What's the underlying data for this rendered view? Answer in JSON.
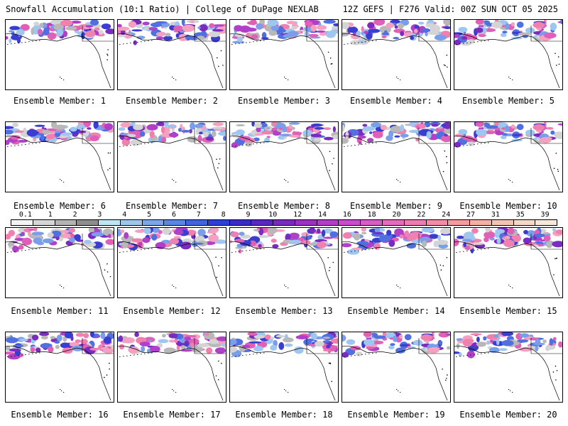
{
  "header": {
    "title_left": "Snowfall Accumulation (10:1 Ratio) | College of DuPage NEXLAB",
    "title_right": "12Z GEFS | F276 Valid: 00Z SUN OCT 05 2025"
  },
  "members": [
    {
      "label": "Ensemble Member: 1"
    },
    {
      "label": "Ensemble Member: 2"
    },
    {
      "label": "Ensemble Member: 3"
    },
    {
      "label": "Ensemble Member: 4"
    },
    {
      "label": "Ensemble Member: 5"
    },
    {
      "label": "Ensemble Member: 6"
    },
    {
      "label": "Ensemble Member: 7"
    },
    {
      "label": "Ensemble Member: 8"
    },
    {
      "label": "Ensemble Member: 9"
    },
    {
      "label": "Ensemble Member: 10"
    },
    {
      "label": "Ensemble Member: 11"
    },
    {
      "label": "Ensemble Member: 12"
    },
    {
      "label": "Ensemble Member: 13"
    },
    {
      "label": "Ensemble Member: 14"
    },
    {
      "label": "Ensemble Member: 15"
    },
    {
      "label": "Ensemble Member: 16"
    },
    {
      "label": "Ensemble Member: 17"
    },
    {
      "label": "Ensemble Member: 18"
    },
    {
      "label": "Ensemble Member: 19"
    },
    {
      "label": "Ensemble Member: 20"
    }
  ],
  "colorbar": {
    "labels": [
      "0.1",
      "1",
      "2",
      "3",
      "4",
      "5",
      "6",
      "7",
      "8",
      "9",
      "10",
      "12",
      "14",
      "16",
      "18",
      "20",
      "22",
      "24",
      "27",
      "31",
      "35",
      "39"
    ],
    "colors": [
      "#f4f4f4",
      "#d6d6d6",
      "#b4b4b4",
      "#8e8e8e",
      "#bfe6f4",
      "#9dc8ee",
      "#7ba6ea",
      "#5a86e6",
      "#3e64e0",
      "#2a40d8",
      "#3a2cc8",
      "#5a28c0",
      "#7a28c0",
      "#9a30c4",
      "#b43cc8",
      "#c84ccc",
      "#d85cc8",
      "#e46cc0",
      "#ee7cb4",
      "#f48ca8",
      "#f49c9c",
      "#f4b0a0",
      "#f4c4b0",
      "#f6d8c6",
      "#f8e8dc"
    ]
  }
}
